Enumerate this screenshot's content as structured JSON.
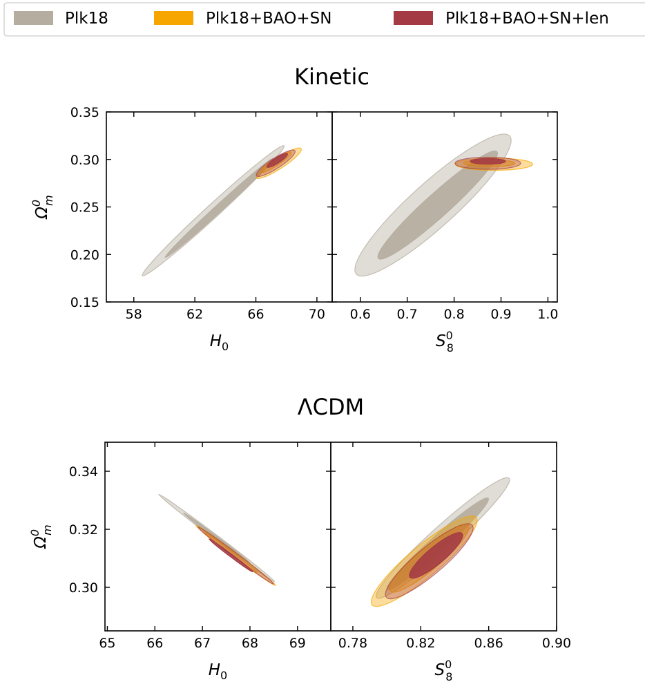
{
  "legend": {
    "entries": [
      {
        "label": "Plk18",
        "color": "#b5ad9f"
      },
      {
        "label": "Plk18+BAO+SN",
        "color": "#f7a600"
      },
      {
        "label": "Plk18+BAO+SN+len",
        "color": "#a33a44"
      }
    ]
  },
  "chart_data": [
    {
      "type": "contour",
      "title": "Kinetic",
      "ylabel": "Ω",
      "ylabel_sup": "0",
      "ylabel_sub": "m",
      "ylim": [
        0.15,
        0.35
      ],
      "yticks": [
        0.15,
        0.2,
        0.25,
        0.3,
        0.35
      ],
      "ytick_labels": [
        "0.15",
        "0.20",
        "0.25",
        "0.30",
        "0.35"
      ],
      "subplots": [
        {
          "xlabel": "H",
          "xlabel_sub": "0",
          "xlabel_sup": "",
          "xlim": [
            56.2,
            71.0
          ],
          "xticks": [
            58,
            62,
            66,
            70
          ],
          "xtick_labels": [
            "58",
            "62",
            "66",
            "70"
          ],
          "contours": [
            {
              "series": "Plk18",
              "level": "95%",
              "center": [
                63.2,
                0.246
              ],
              "angle_deg": 42.5,
              "major": 12.6,
              "minor": 0.86,
              "color": "#b5ad9f",
              "opacity": 0.42
            },
            {
              "series": "Plk18",
              "level": "68%",
              "center": [
                63.6,
                0.249
              ],
              "angle_deg": 42.5,
              "major": 9.6,
              "minor": 0.46,
              "color": "#b5ad9f",
              "opacity": 0.9
            },
            {
              "series": "Plk18+BAO+SN",
              "level": "95%",
              "center": [
                67.5,
                0.296
              ],
              "angle_deg": 33,
              "major": 3.5,
              "minor": 0.72,
              "color": "#f7a600",
              "opacity": 0.38
            },
            {
              "series": "Plk18+BAO+SN",
              "level": "68%",
              "center": [
                67.3,
                0.297
              ],
              "angle_deg": 33,
              "major": 2.4,
              "minor": 0.46,
              "color": "#f7a600",
              "opacity": 0.45
            },
            {
              "series": "Plk18+BAO+SN+len",
              "level": "95%",
              "center": [
                67.3,
                0.296
              ],
              "angle_deg": 33,
              "major": 3.0,
              "minor": 0.68,
              "color": "#a33a44",
              "opacity": 0.32
            },
            {
              "series": "Plk18+BAO+SN+len",
              "level": "68%",
              "center": [
                67.4,
                0.299
              ],
              "angle_deg": 33,
              "major": 1.6,
              "minor": 0.36,
              "color": "#a33a44",
              "opacity": 0.88
            }
          ]
        },
        {
          "xlabel": "S",
          "xlabel_sub": "8",
          "xlabel_sup": "0",
          "xlim": [
            0.54,
            1.02
          ],
          "xticks": [
            0.6,
            0.7,
            0.8,
            0.9,
            1.0
          ],
          "xtick_labels": [
            "0.6",
            "0.7",
            "0.8",
            "0.9",
            "1.0"
          ],
          "contours": [
            {
              "series": "Plk18",
              "level": "95%",
              "center": [
                0.755,
                0.252
              ],
              "angle_deg": 42,
              "major": 0.44,
              "minor": 0.095,
              "color": "#b5ad9f",
              "opacity": 0.42
            },
            {
              "series": "Plk18",
              "level": "68%",
              "center": [
                0.765,
                0.252
              ],
              "angle_deg": 42,
              "major": 0.34,
              "minor": 0.05,
              "color": "#b5ad9f",
              "opacity": 0.9
            },
            {
              "series": "Plk18+BAO+SN",
              "level": "95%",
              "center": [
                0.885,
                0.295
              ],
              "angle_deg": 0,
              "major": 0.165,
              "minor": 0.026,
              "color": "#f7a600",
              "opacity": 0.38
            },
            {
              "series": "Plk18+BAO+SN",
              "level": "68%",
              "center": [
                0.875,
                0.296
              ],
              "angle_deg": 0,
              "major": 0.11,
              "minor": 0.015,
              "color": "#f7a600",
              "opacity": 0.45
            },
            {
              "series": "Plk18+BAO+SN+len",
              "level": "95%",
              "center": [
                0.872,
                0.296
              ],
              "angle_deg": 0,
              "major": 0.14,
              "minor": 0.026,
              "color": "#a33a44",
              "opacity": 0.32
            },
            {
              "series": "Plk18+BAO+SN+len",
              "level": "68%",
              "center": [
                0.872,
                0.298
              ],
              "angle_deg": 0,
              "major": 0.075,
              "minor": 0.012,
              "color": "#a33a44",
              "opacity": 0.88
            }
          ]
        }
      ]
    },
    {
      "type": "contour",
      "title": "ΛCDM",
      "ylabel": "Ω",
      "ylabel_sup": "0",
      "ylabel_sub": "m",
      "ylim": [
        0.285,
        0.35
      ],
      "yticks": [
        0.3,
        0.32,
        0.34
      ],
      "ytick_labels": [
        "0.30",
        "0.32",
        "0.34"
      ],
      "subplots": [
        {
          "xlabel": "H",
          "xlabel_sub": "0",
          "xlabel_sup": "",
          "xlim": [
            64.95,
            69.7
          ],
          "xticks": [
            65,
            66,
            67,
            68,
            69
          ],
          "xtick_labels": [
            "65",
            "66",
            "67",
            "68",
            "69"
          ],
          "contours": [
            {
              "series": "Plk18",
              "level": "95%",
              "center": [
                67.3,
                0.317
              ],
              "angle_deg": -37,
              "major": 3.05,
              "minor": 0.1,
              "color": "#b5ad9f",
              "opacity": 0.42
            },
            {
              "series": "Plk18",
              "level": "68%",
              "center": [
                67.3,
                0.317
              ],
              "angle_deg": -37,
              "major": 1.75,
              "minor": 0.055,
              "color": "#b5ad9f",
              "opacity": 0.9
            },
            {
              "series": "Plk18+BAO+SN",
              "level": "95%",
              "center": [
                67.7,
                0.311
              ],
              "angle_deg": -37,
              "major": 2.1,
              "minor": 0.1,
              "color": "#f7a600",
              "opacity": 0.38
            },
            {
              "series": "Plk18+BAO+SN",
              "level": "68%",
              "center": [
                67.6,
                0.312
              ],
              "angle_deg": -37,
              "major": 1.4,
              "minor": 0.06,
              "color": "#f7a600",
              "opacity": 0.45
            },
            {
              "series": "Plk18+BAO+SN+len",
              "level": "95%",
              "center": [
                67.7,
                0.311
              ],
              "angle_deg": -37,
              "major": 2.0,
              "minor": 0.095,
              "color": "#a33a44",
              "opacity": 0.32
            },
            {
              "series": "Plk18+BAO+SN+len",
              "level": "68%",
              "center": [
                67.6,
                0.311
              ],
              "angle_deg": -37,
              "major": 1.15,
              "minor": 0.052,
              "color": "#a33a44",
              "opacity": 0.88
            }
          ]
        },
        {
          "xlabel": "S",
          "xlabel_sub": "8",
          "xlabel_sup": "0",
          "xlim": [
            0.767,
            0.9
          ],
          "xticks": [
            0.78,
            0.82,
            0.86,
            0.9
          ],
          "xtick_labels": [
            "0.78",
            "0.82",
            "0.86",
            "0.90"
          ],
          "contours": [
            {
              "series": "Plk18",
              "level": "95%",
              "center": [
                0.833,
                0.317
              ],
              "angle_deg": 42,
              "major": 0.105,
              "minor": 0.014,
              "color": "#b5ad9f",
              "opacity": 0.42
            },
            {
              "series": "Plk18",
              "level": "68%",
              "center": [
                0.83,
                0.315
              ],
              "angle_deg": 42,
              "major": 0.08,
              "minor": 0.009,
              "color": "#b5ad9f",
              "opacity": 0.9
            },
            {
              "series": "Plk18+BAO+SN",
              "level": "95%",
              "center": [
                0.822,
                0.309
              ],
              "angle_deg": 40,
              "major": 0.08,
              "minor": 0.018,
              "color": "#f7a600",
              "opacity": 0.38
            },
            {
              "series": "Plk18+BAO+SN",
              "level": "68%",
              "center": [
                0.825,
                0.31
              ],
              "angle_deg": 40,
              "major": 0.06,
              "minor": 0.013,
              "color": "#f7a600",
              "opacity": 0.45
            },
            {
              "series": "Plk18+BAO+SN+len",
              "level": "95%",
              "center": [
                0.825,
                0.309
              ],
              "angle_deg": 40,
              "major": 0.066,
              "minor": 0.016,
              "color": "#a33a44",
              "opacity": 0.32
            },
            {
              "series": "Plk18+BAO+SN+len",
              "level": "68%",
              "center": [
                0.829,
                0.311
              ],
              "angle_deg": 40,
              "major": 0.04,
              "minor": 0.01,
              "color": "#a33a44",
              "opacity": 0.88
            }
          ]
        }
      ]
    }
  ]
}
